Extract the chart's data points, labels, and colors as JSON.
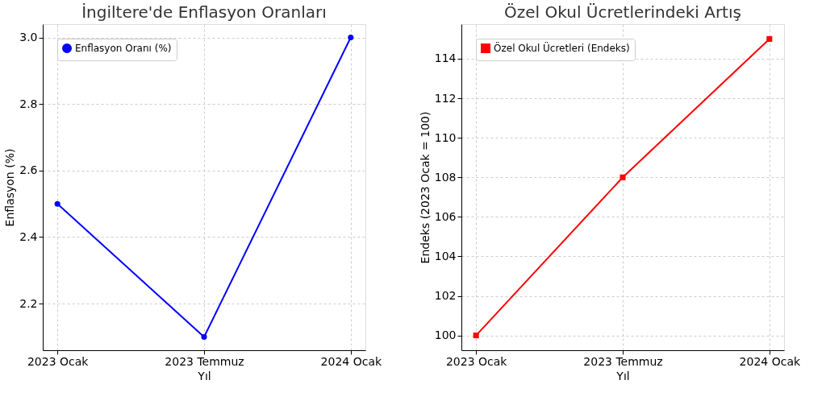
{
  "chart_data": [
    {
      "type": "line",
      "title": "İngiltere'de Enflasyon Oranları",
      "xlabel": "Yıl",
      "ylabel": "Enflasyon (%)",
      "categories": [
        "2023 Ocak",
        "2023 Temmuz",
        "2024 Ocak"
      ],
      "series": [
        {
          "name": "Enflasyon Oranı (%)",
          "color": "#0000ff",
          "values": [
            2.5,
            2.1,
            3.0
          ]
        }
      ],
      "ylim": [
        2.06,
        3.04
      ],
      "yticks": [
        2.2,
        2.4,
        2.6,
        2.8,
        {
          "value": 3.0,
          "label": "3.0"
        }
      ],
      "grid": true,
      "legend": "top left",
      "marker": "circle",
      "line_style": "solid"
    },
    {
      "type": "line",
      "title": "Özel Okul Ücretlerindeki Artış",
      "xlabel": "Yıl",
      "ylabel": "Endeks (2023 Ocak = 100)",
      "categories": [
        "2023 Ocak",
        "2023 Temmuz",
        "2024 Ocak"
      ],
      "series": [
        {
          "name": "Özel Okul Ücretleri (Endeks)",
          "color": "#ff0000",
          "values": [
            100,
            108,
            115
          ]
        }
      ],
      "ylim": [
        99.25,
        115.75
      ],
      "yticks": [
        100,
        102,
        104,
        106,
        108,
        110,
        112,
        114
      ],
      "grid": true,
      "legend": "top left",
      "marker": "square",
      "line_style": "solid"
    }
  ]
}
